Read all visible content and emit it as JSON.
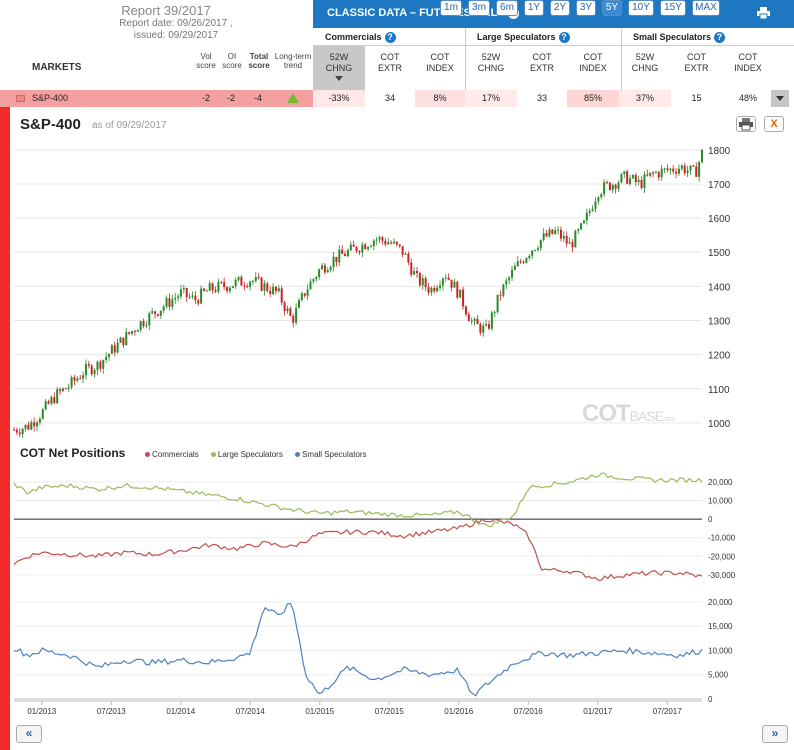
{
  "report": {
    "title": "Report 39/2017",
    "report_date": "Report date: 09/26/2017 ,",
    "issued": "issued: 09/29/2017"
  },
  "markets_label": "MARKETS",
  "columns": {
    "vol": [
      "Vol",
      "score"
    ],
    "oi": [
      "OI",
      "score"
    ],
    "total": [
      "Total",
      "score"
    ],
    "trend": [
      "Long-term",
      "trend"
    ]
  },
  "panel": {
    "title": "CLASSIC DATA – FUTURES ONLY",
    "help": "?"
  },
  "groups": [
    {
      "label": "Commercials",
      "help": "?"
    },
    {
      "label": "Large Speculators",
      "help": "?"
    },
    {
      "label": "Small Speculators",
      "help": "?"
    }
  ],
  "sub_headers": [
    [
      "52W",
      "CHNG"
    ],
    [
      "COT",
      "EXTR"
    ],
    [
      "COT",
      "INDEX"
    ],
    [
      "52W",
      "CHNG"
    ],
    [
      "COT",
      "EXTR"
    ],
    [
      "COT",
      "INDEX"
    ],
    [
      "52W",
      "CHNG"
    ],
    [
      "COT",
      "EXTR"
    ],
    [
      "COT",
      "INDEX"
    ]
  ],
  "row": {
    "market": "S&P-400",
    "vol": "-2",
    "oi": "-2",
    "total": "-4",
    "cells": [
      "-33%",
      "34",
      "8%",
      "17%",
      "33",
      "85%",
      "37%",
      "15",
      "48%"
    ],
    "cell_colors": [
      "#ffe8e8",
      "#ffffff",
      "#ffe0e0",
      "#ffeaea",
      "#ffffff",
      "#ffd6d6",
      "#ffeaea",
      "#ffffff",
      "#ffffff"
    ]
  },
  "chart": {
    "title": "S&P-400",
    "as_of": "as of 09/29/2017",
    "ranges": [
      "1m",
      "3m",
      "6m",
      "1Y",
      "2Y",
      "3Y",
      "5Y",
      "10Y",
      "15Y",
      "MAX"
    ],
    "active_range": "5Y",
    "close": "X",
    "watermark_cot": "COT",
    "watermark_base": "BASE",
    "watermark_dom": ".com"
  },
  "cot": {
    "title": "COT Net Positions",
    "legend": [
      {
        "name": "Commercials",
        "color": "#c0504d"
      },
      {
        "name": "Large Speculators",
        "color": "#9bbb59"
      },
      {
        "name": "Small Speculators",
        "color": "#4f81bd"
      }
    ]
  },
  "nav": {
    "prev": "«",
    "next": "»"
  },
  "chart_data": [
    {
      "type": "line",
      "title": "S&P-400",
      "subtype": "candlestick",
      "ylim": [
        950,
        1820
      ],
      "yticks": [
        1000,
        1100,
        1200,
        1300,
        1400,
        1500,
        1600,
        1700,
        1800
      ],
      "x": [
        2012.8,
        2012.9,
        2013.0,
        2013.1,
        2013.2,
        2013.3,
        2013.4,
        2013.5,
        2013.6,
        2013.7,
        2013.8,
        2013.9,
        2014.0,
        2014.1,
        2014.2,
        2014.3,
        2014.4,
        2014.5,
        2014.6,
        2014.7,
        2014.8,
        2014.9,
        2015.0,
        2015.1,
        2015.2,
        2015.3,
        2015.4,
        2015.5,
        2015.6,
        2015.7,
        2015.8,
        2015.9,
        2016.0,
        2016.1,
        2016.2,
        2016.3,
        2016.4,
        2016.5,
        2016.6,
        2016.7,
        2016.8,
        2016.9,
        2017.0,
        2017.1,
        2017.2,
        2017.3,
        2017.4,
        2017.5,
        2017.6,
        2017.7,
        2017.75
      ],
      "values": [
        980,
        990,
        1030,
        1080,
        1110,
        1150,
        1170,
        1210,
        1250,
        1290,
        1320,
        1350,
        1380,
        1360,
        1390,
        1400,
        1410,
        1420,
        1400,
        1380,
        1300,
        1390,
        1450,
        1480,
        1500,
        1520,
        1540,
        1530,
        1500,
        1420,
        1390,
        1440,
        1380,
        1290,
        1270,
        1380,
        1450,
        1500,
        1540,
        1560,
        1520,
        1580,
        1680,
        1700,
        1720,
        1700,
        1730,
        1740,
        1750,
        1730,
        1790
      ]
    },
    {
      "type": "line",
      "title": "COT Net Positions",
      "ylim": [
        -36000,
        28000
      ],
      "yticks": [
        20000,
        10000,
        0,
        -10000,
        -20000,
        -30000
      ],
      "x": [
        2012.8,
        2012.9,
        2013.0,
        2013.2,
        2013.4,
        2013.6,
        2013.8,
        2014.0,
        2014.2,
        2014.4,
        2014.6,
        2014.8,
        2015.0,
        2015.2,
        2015.4,
        2015.6,
        2015.8,
        2016.0,
        2016.2,
        2016.4,
        2016.5,
        2016.6,
        2016.8,
        2017.0,
        2017.2,
        2017.4,
        2017.6,
        2017.75
      ],
      "series": [
        {
          "name": "Commercials",
          "values": [
            -24000,
            -20000,
            -18000,
            -19000,
            -20000,
            -18000,
            -19000,
            -17000,
            -14000,
            -16000,
            -13000,
            -15000,
            -8000,
            -7000,
            -7000,
            -9000,
            -7000,
            -5000,
            0,
            -3000,
            -9000,
            -27000,
            -28000,
            -32000,
            -30000,
            -29000,
            -29000,
            -31000
          ]
        },
        {
          "name": "Large Speculators",
          "values": [
            19000,
            14000,
            17000,
            18000,
            16000,
            18000,
            17000,
            15000,
            13000,
            11000,
            8000,
            5000,
            3000,
            4000,
            3000,
            2000,
            2000,
            4000,
            -4000,
            2000,
            17000,
            18000,
            20000,
            24000,
            22000,
            21000,
            21000,
            21000
          ]
        }
      ]
    },
    {
      "type": "line",
      "title": "",
      "ylim": [
        0,
        21000
      ],
      "yticks": [
        20000,
        15000,
        10000,
        5000,
        0
      ],
      "x": [
        2012.8,
        2012.9,
        2013.0,
        2013.2,
        2013.4,
        2013.6,
        2013.8,
        2014.0,
        2014.2,
        2014.4,
        2014.5,
        2014.6,
        2014.7,
        2014.8,
        2014.9,
        2015.0,
        2015.2,
        2015.4,
        2015.6,
        2015.8,
        2016.0,
        2016.1,
        2016.2,
        2016.4,
        2016.6,
        2016.8,
        2017.0,
        2017.2,
        2017.4,
        2017.6,
        2017.75
      ],
      "series": [
        {
          "name": "Small Speculators",
          "values": [
            10500,
            9000,
            10000,
            9000,
            6500,
            8000,
            7500,
            8000,
            7500,
            8500,
            9500,
            19000,
            17000,
            20000,
            5000,
            800,
            6500,
            4000,
            6000,
            5000,
            6000,
            500,
            3000,
            7500,
            9500,
            9000,
            9500,
            10000,
            9500,
            9000,
            10000
          ]
        }
      ]
    }
  ],
  "x_axis_labels": [
    "01/2013",
    "07/2013",
    "01/2014",
    "07/2014",
    "01/2015",
    "07/2015",
    "01/2016",
    "07/2016",
    "01/2017",
    "07/2017"
  ]
}
